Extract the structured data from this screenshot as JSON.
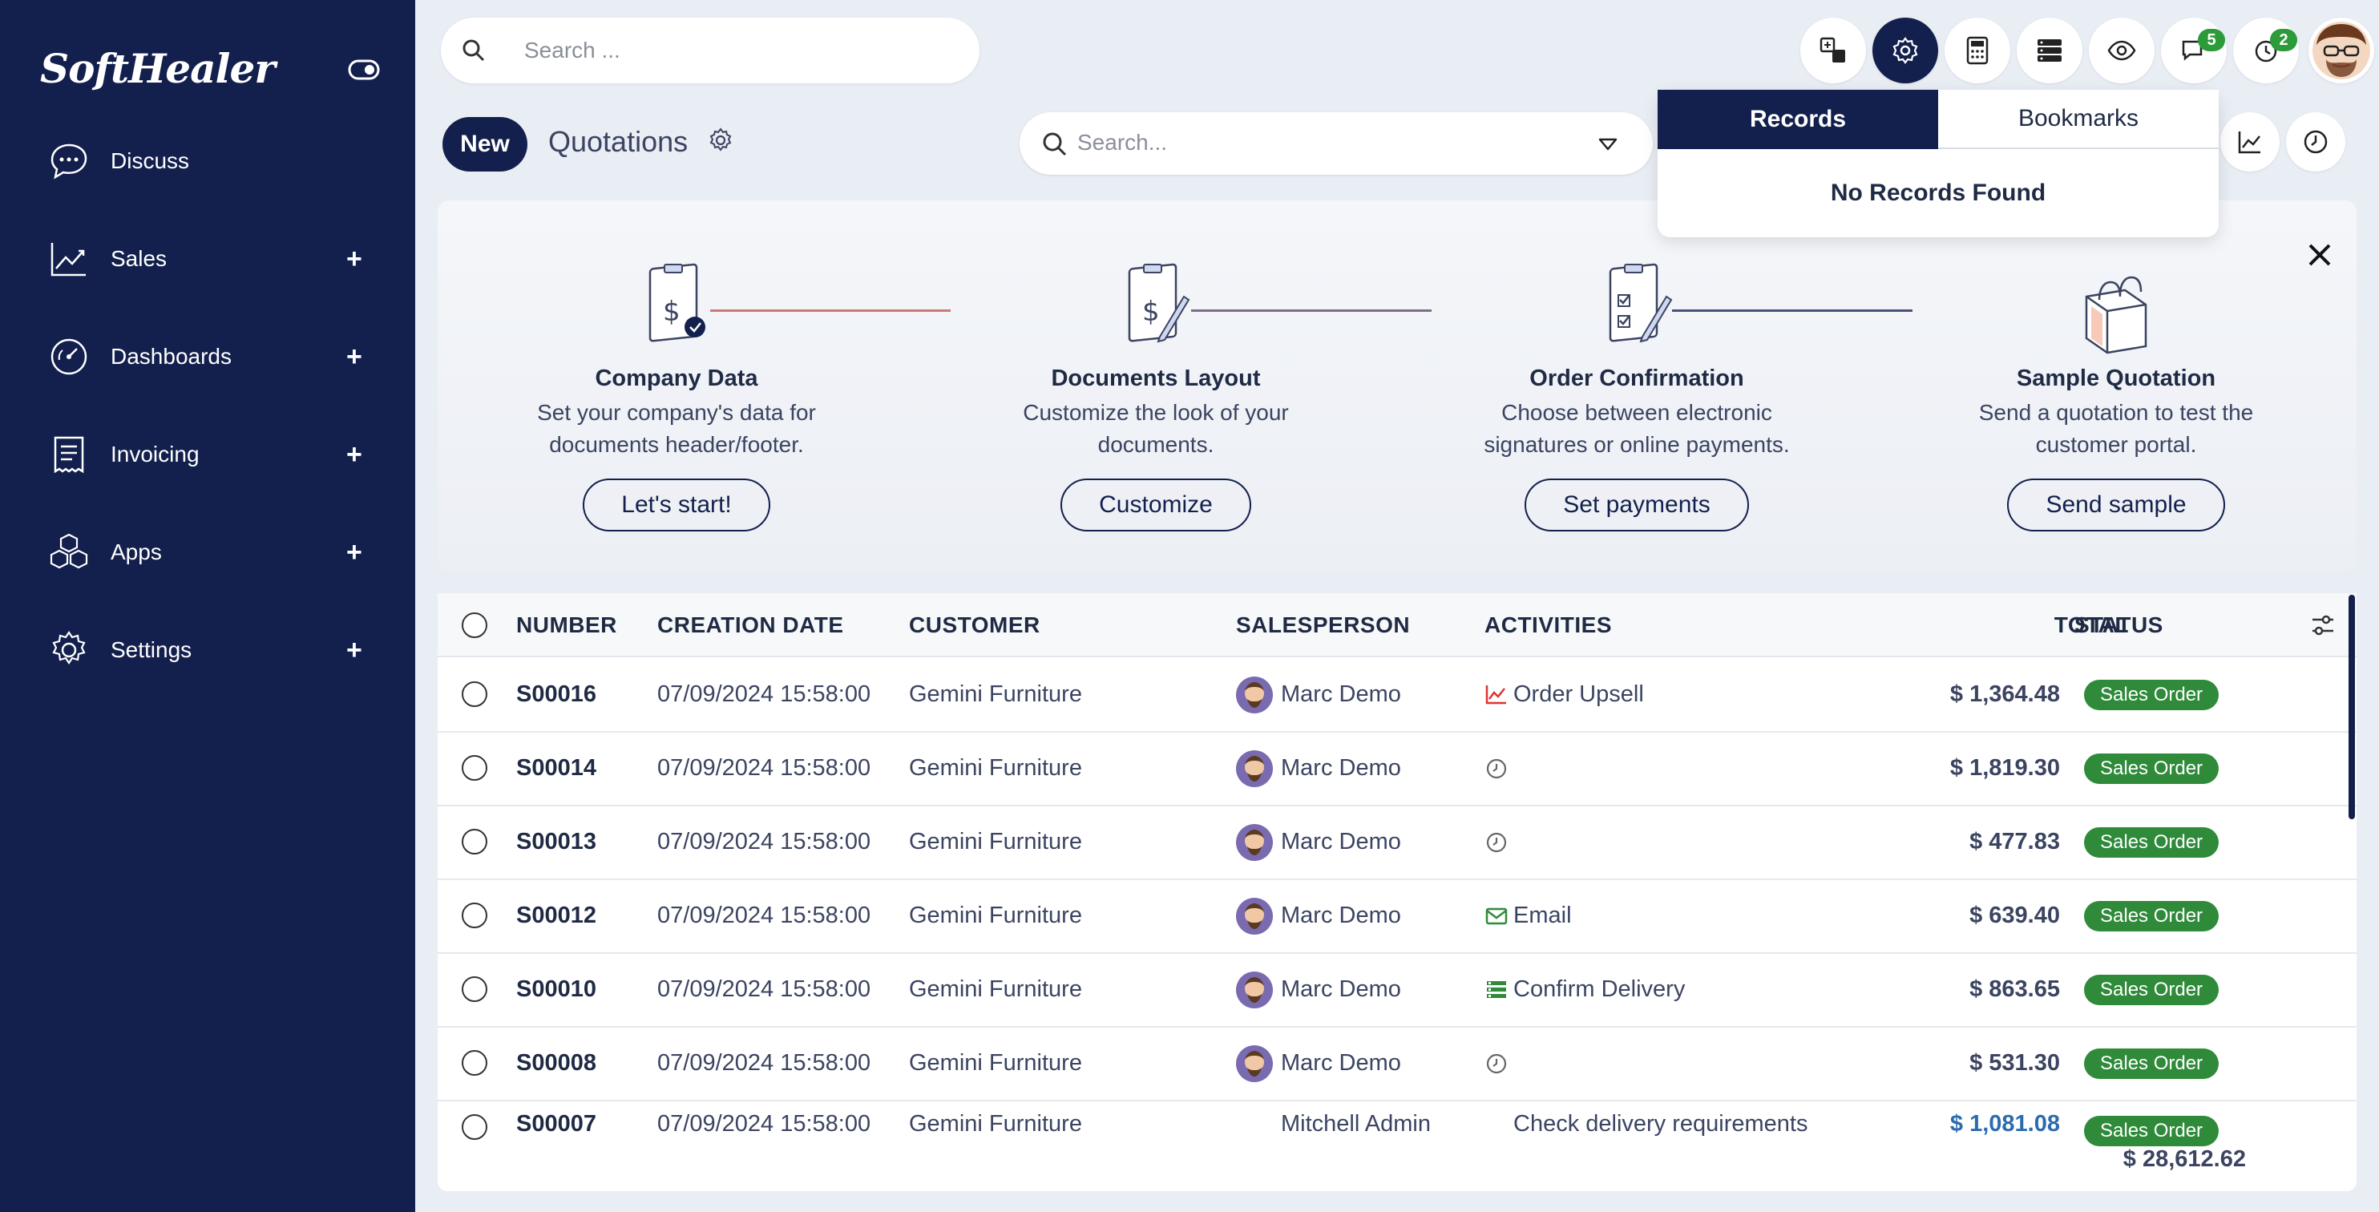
{
  "app": {
    "brand": "SoftHealer",
    "sidebar": [
      {
        "label": "Discuss",
        "icon": "chat-bubble-icon",
        "expandable": false
      },
      {
        "label": "Sales",
        "icon": "chart-line-icon",
        "expandable": true
      },
      {
        "label": "Dashboards",
        "icon": "gauge-icon",
        "expandable": true
      },
      {
        "label": "Invoicing",
        "icon": "receipt-icon",
        "expandable": true
      },
      {
        "label": "Apps",
        "icon": "cubes-icon",
        "expandable": true
      },
      {
        "label": "Settings",
        "icon": "gear-icon",
        "expandable": true
      }
    ],
    "plus": "+"
  },
  "topbar": {
    "search_placeholder": "Search ...",
    "icons": [
      "translate-icon",
      "gear-icon",
      "calculator-icon",
      "server-icon",
      "eye-icon",
      "chat-icon",
      "activity-clock-icon"
    ],
    "chat_badge": "5",
    "activity_badge": "2"
  },
  "control": {
    "new_label": "New",
    "breadcrumb": "Quotations",
    "search_placeholder": "Search..."
  },
  "popover": {
    "tab_active": "Records",
    "tab_inactive": "Bookmarks",
    "empty_text": "No Records Found"
  },
  "onboarding": {
    "steps": [
      {
        "title": "Company Data",
        "desc1": "Set your company's data for",
        "desc2": "documents header/footer.",
        "button": "Let's start!"
      },
      {
        "title": "Documents Layout",
        "desc1": "Customize the look of your",
        "desc2": "documents.",
        "button": "Customize"
      },
      {
        "title": "Order Confirmation",
        "desc1": "Choose between electronic",
        "desc2": "signatures or online payments.",
        "button": "Set payments"
      },
      {
        "title": "Sample Quotation",
        "desc1": "Send a quotation to test the",
        "desc2": "customer portal.",
        "button": "Send sample"
      }
    ]
  },
  "table": {
    "headers": {
      "number": "NUMBER",
      "creation_date": "CREATION DATE",
      "customer": "CUSTOMER",
      "salesperson": "SALESPERSON",
      "activities": "ACTIVITIES",
      "total": "TOTAL",
      "status": "STATUS"
    },
    "rows": [
      {
        "number": "S00016",
        "date": "07/09/2024 15:58:00",
        "customer": "Gemini Furniture",
        "salesperson": "Marc Demo",
        "activity": "Order Upsell",
        "activity_icon": "trend-chart-icon",
        "total": "$ 1,364.48",
        "status": "Sales Order"
      },
      {
        "number": "S00014",
        "date": "07/09/2024 15:58:00",
        "customer": "Gemini Furniture",
        "salesperson": "Marc Demo",
        "activity": "",
        "activity_icon": "clock-icon",
        "total": "$ 1,819.30",
        "status": "Sales Order"
      },
      {
        "number": "S00013",
        "date": "07/09/2024 15:58:00",
        "customer": "Gemini Furniture",
        "salesperson": "Marc Demo",
        "activity": "",
        "activity_icon": "clock-icon",
        "total": "$ 477.83",
        "status": "Sales Order"
      },
      {
        "number": "S00012",
        "date": "07/09/2024 15:58:00",
        "customer": "Gemini Furniture",
        "salesperson": "Marc Demo",
        "activity": "Email",
        "activity_icon": "envelope-icon",
        "total": "$ 639.40",
        "status": "Sales Order"
      },
      {
        "number": "S00010",
        "date": "07/09/2024 15:58:00",
        "customer": "Gemini Furniture",
        "salesperson": "Marc Demo",
        "activity": "Confirm Delivery",
        "activity_icon": "tasks-icon",
        "total": "$ 863.65",
        "status": "Sales Order"
      },
      {
        "number": "S00008",
        "date": "07/09/2024 15:58:00",
        "customer": "Gemini Furniture",
        "salesperson": "Marc Demo",
        "activity": "",
        "activity_icon": "clock-icon",
        "total": "$ 531.30",
        "status": "Sales Order"
      }
    ],
    "partial_row": {
      "number": "S00007",
      "date": "07/09/2024 15:58:00",
      "customer": "Gemini Furniture",
      "salesperson": "Mitchell Admin",
      "activity": "Check delivery requirements",
      "total": "$ 1,081.08",
      "status": "Sales Order"
    },
    "grand_total": "$ 28,612.62"
  },
  "colors": {
    "navy": "#13204d",
    "status_green": "#2f8a3a",
    "badge_green": "#2d9b3a"
  }
}
